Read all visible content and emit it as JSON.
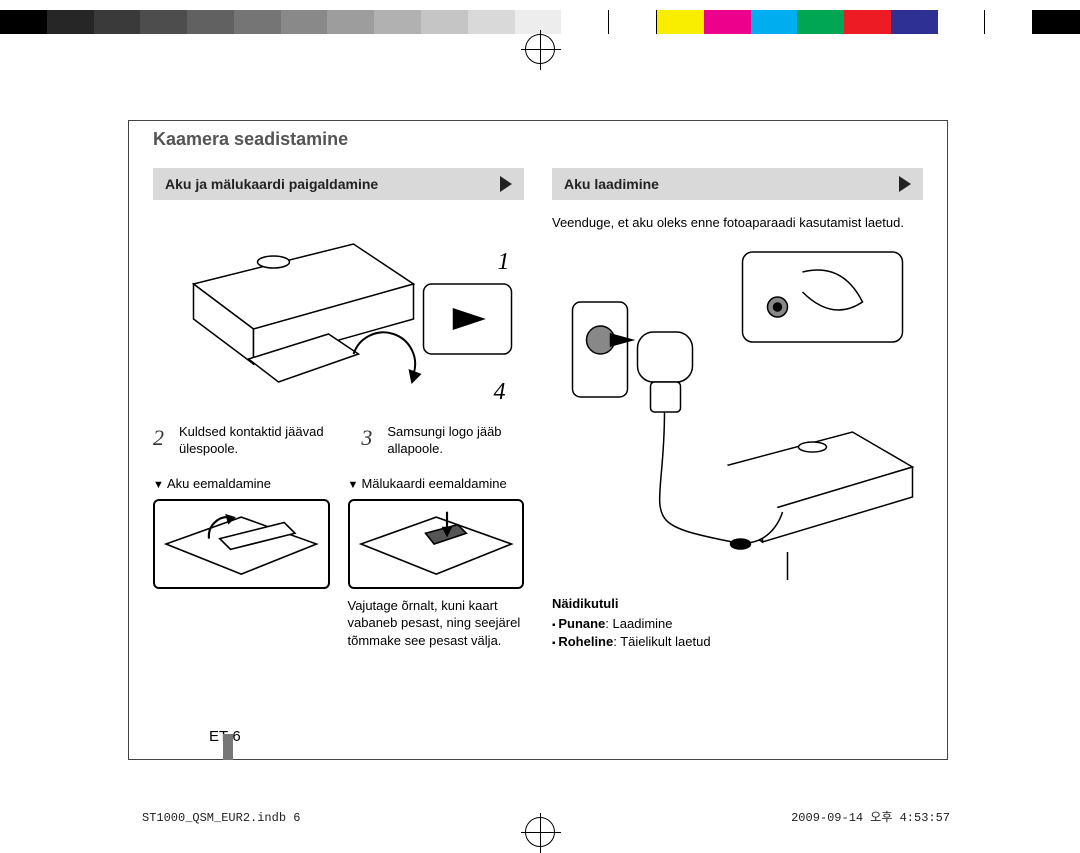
{
  "colorBar": [
    "#000000",
    "#262626",
    "#3a3a3a",
    "#4d4d4d",
    "#616161",
    "#757575",
    "#898989",
    "#9d9d9d",
    "#b1b1b1",
    "#c5c5c5",
    "#d9d9d9",
    "#ededed",
    "#ffffff",
    "#ffffff",
    "#f9ed00",
    "#ec008c",
    "#00aeef",
    "#00a651",
    "#ed1c24",
    "#2e3192",
    "#ffffff",
    "#ffffff",
    "#000000"
  ],
  "title": "Kaamera seadistamine",
  "left": {
    "heading": "Aku ja mälukaardi paigaldamine",
    "stepNums": {
      "one": "1",
      "two": "2",
      "three": "3",
      "four": "4"
    },
    "step2": "Kuldsed kontaktid jäävad ülespoole.",
    "step3": "Samsungi logo jääb allapoole.",
    "removeBattery": "Aku eemaldamine",
    "removeCard": "Mälukaardi eemaldamine",
    "cardCaption": "Vajutage õrnalt, kuni kaart vabaneb pesast, ning seejärel tõmmake see pesast välja."
  },
  "right": {
    "heading": "Aku laadimine",
    "intro": "Veenduge, et aku oleks enne fotoaparaadi kasutamist laetud.",
    "legendTitle": "Näidikutuli",
    "red": "Punane",
    "redDesc": ": Laadimine",
    "green": "Roheline",
    "greenDesc": ": Täielikult laetud"
  },
  "pageNum": "ET-6",
  "footerLeft": "ST1000_QSM_EUR2.indb   6",
  "footerRight": "2009-09-14   오후 4:53:57"
}
